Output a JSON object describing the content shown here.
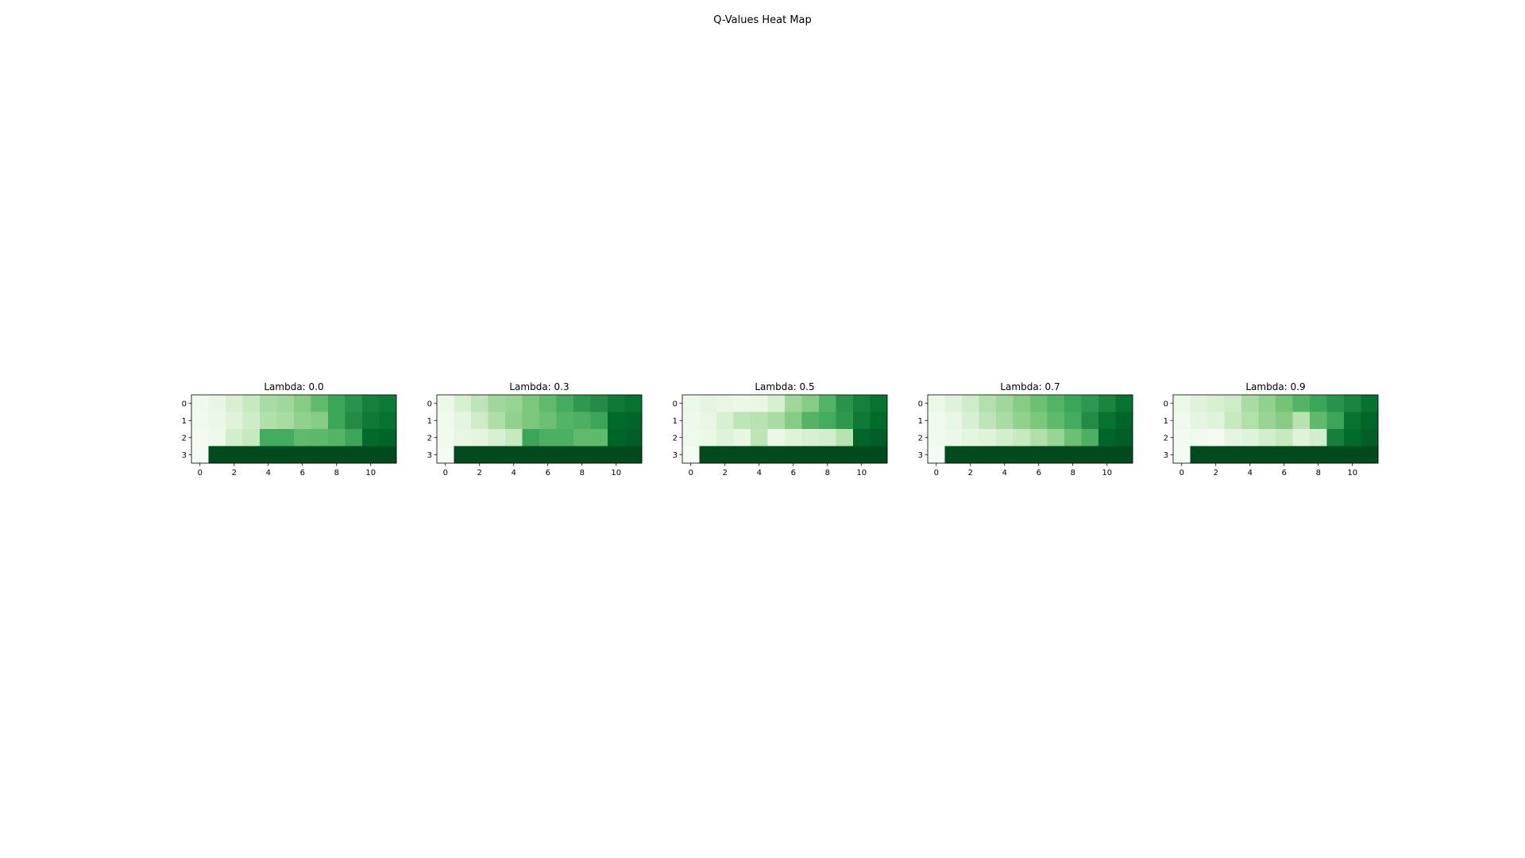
{
  "figure": {
    "title": "Q-Values Heat Map"
  },
  "chart_data": [
    {
      "type": "heatmap",
      "title": "Lambda: 0.0",
      "colormap": "Greens",
      "shape": [
        4,
        12
      ],
      "x_ticks": [
        0,
        2,
        4,
        6,
        8,
        10
      ],
      "y_ticks": [
        0,
        1,
        2,
        3
      ],
      "values": [
        [
          0.05,
          0.1,
          0.18,
          0.25,
          0.35,
          0.38,
          0.45,
          0.55,
          0.65,
          0.72,
          0.8,
          0.82
        ],
        [
          0.04,
          0.08,
          0.15,
          0.22,
          0.32,
          0.35,
          0.42,
          0.45,
          0.65,
          0.75,
          0.82,
          0.85
        ],
        [
          0.03,
          0.06,
          0.2,
          0.25,
          0.62,
          0.62,
          0.55,
          0.56,
          0.58,
          0.65,
          0.88,
          0.9
        ],
        [
          0.02,
          0.98,
          0.98,
          0.98,
          0.98,
          0.98,
          0.98,
          0.98,
          0.98,
          0.98,
          0.98,
          0.98
        ]
      ]
    },
    {
      "type": "heatmap",
      "title": "Lambda: 0.3",
      "colormap": "Greens",
      "shape": [
        4,
        12
      ],
      "x_ticks": [
        0,
        2,
        4,
        6,
        8,
        10
      ],
      "y_ticks": [
        0,
        1,
        2,
        3
      ],
      "values": [
        [
          0.08,
          0.18,
          0.28,
          0.38,
          0.4,
          0.48,
          0.55,
          0.62,
          0.7,
          0.75,
          0.82,
          0.85
        ],
        [
          0.05,
          0.12,
          0.22,
          0.33,
          0.42,
          0.48,
          0.52,
          0.58,
          0.6,
          0.65,
          0.88,
          0.9
        ],
        [
          0.04,
          0.1,
          0.12,
          0.18,
          0.25,
          0.65,
          0.6,
          0.6,
          0.55,
          0.55,
          0.9,
          0.92
        ],
        [
          0.02,
          0.98,
          0.98,
          0.98,
          0.98,
          0.98,
          0.98,
          0.98,
          0.98,
          0.98,
          0.98,
          0.98
        ]
      ]
    },
    {
      "type": "heatmap",
      "title": "Lambda: 0.5",
      "colormap": "Greens",
      "shape": [
        4,
        12
      ],
      "x_ticks": [
        0,
        2,
        4,
        6,
        8,
        10
      ],
      "y_ticks": [
        0,
        1,
        2,
        3
      ],
      "values": [
        [
          0.08,
          0.12,
          0.1,
          0.08,
          0.1,
          0.18,
          0.38,
          0.45,
          0.58,
          0.72,
          0.8,
          0.85
        ],
        [
          0.06,
          0.1,
          0.18,
          0.28,
          0.3,
          0.35,
          0.45,
          0.58,
          0.62,
          0.7,
          0.82,
          0.88
        ],
        [
          0.05,
          0.08,
          0.15,
          0.1,
          0.28,
          0.08,
          0.15,
          0.18,
          0.2,
          0.3,
          0.9,
          0.92
        ],
        [
          0.02,
          0.98,
          0.98,
          0.98,
          0.98,
          0.98,
          0.98,
          0.98,
          0.98,
          0.98,
          0.98,
          0.98
        ]
      ]
    },
    {
      "type": "heatmap",
      "title": "Lambda: 0.7",
      "colormap": "Greens",
      "shape": [
        4,
        12
      ],
      "x_ticks": [
        0,
        2,
        4,
        6,
        8,
        10
      ],
      "y_ticks": [
        0,
        1,
        2,
        3
      ],
      "values": [
        [
          0.08,
          0.15,
          0.22,
          0.32,
          0.38,
          0.45,
          0.52,
          0.58,
          0.65,
          0.7,
          0.78,
          0.85
        ],
        [
          0.05,
          0.1,
          0.18,
          0.28,
          0.35,
          0.42,
          0.48,
          0.55,
          0.62,
          0.75,
          0.85,
          0.9
        ],
        [
          0.04,
          0.08,
          0.12,
          0.15,
          0.2,
          0.25,
          0.32,
          0.4,
          0.52,
          0.6,
          0.9,
          0.92
        ],
        [
          0.02,
          0.98,
          0.98,
          0.98,
          0.98,
          0.98,
          0.98,
          0.98,
          0.98,
          0.98,
          0.98,
          0.98
        ]
      ]
    },
    {
      "type": "heatmap",
      "title": "Lambda: 0.9",
      "colormap": "Greens",
      "shape": [
        4,
        12
      ],
      "x_ticks": [
        0,
        2,
        4,
        6,
        8,
        10
      ],
      "y_ticks": [
        0,
        1,
        2,
        3
      ],
      "values": [
        [
          0.08,
          0.15,
          0.18,
          0.22,
          0.35,
          0.42,
          0.5,
          0.58,
          0.65,
          0.72,
          0.78,
          0.85
        ],
        [
          0.05,
          0.12,
          0.15,
          0.25,
          0.32,
          0.4,
          0.45,
          0.3,
          0.55,
          0.65,
          0.85,
          0.9
        ],
        [
          0.03,
          0.05,
          0.02,
          0.12,
          0.15,
          0.2,
          0.25,
          0.15,
          0.2,
          0.8,
          0.88,
          0.92
        ],
        [
          0.02,
          0.98,
          0.98,
          0.98,
          0.98,
          0.98,
          0.98,
          0.98,
          0.98,
          0.98,
          0.98,
          0.98
        ]
      ]
    }
  ]
}
